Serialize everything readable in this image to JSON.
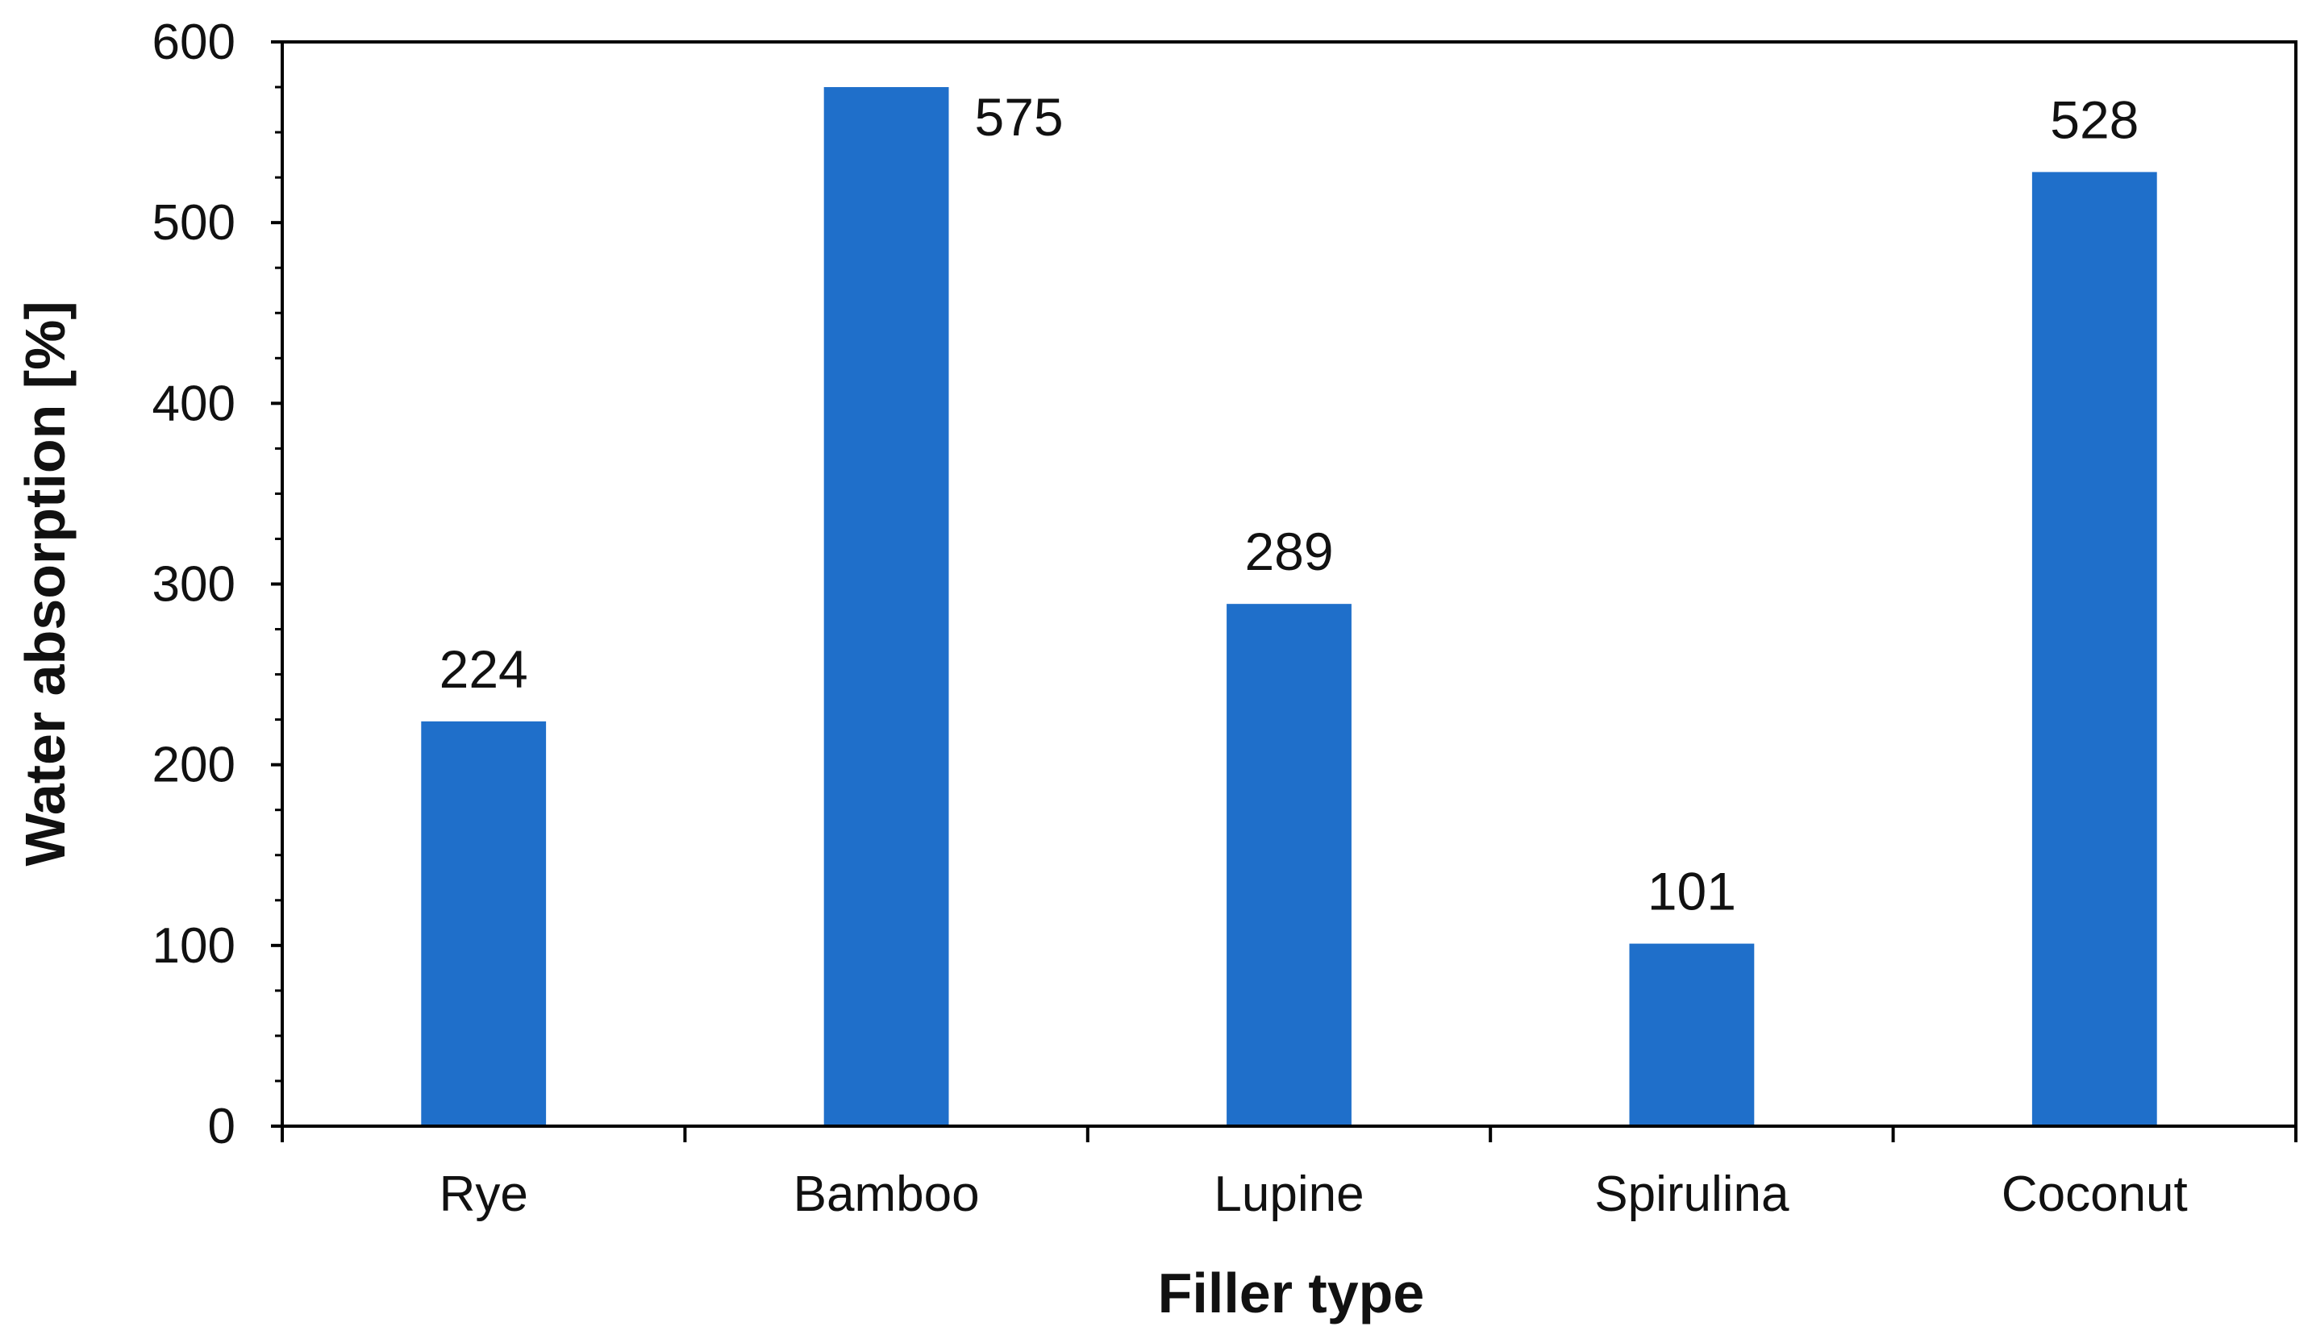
{
  "chart_data": {
    "type": "bar",
    "title": "",
    "xlabel": "Filler type",
    "ylabel": "Water absorption [%]",
    "categories": [
      "Rye",
      "Bamboo",
      "Lupine",
      "Spirulina",
      "Coconut"
    ],
    "values": [
      224,
      575,
      289,
      101,
      528
    ],
    "data_labels": [
      "224",
      "575",
      "289",
      "101",
      "528"
    ],
    "ylim": [
      0,
      600
    ],
    "y_ticks": [
      0,
      100,
      200,
      300,
      400,
      500,
      600
    ],
    "y_minor_step": 25,
    "grid": false,
    "legend": "none",
    "bar_color": "#1f6fca",
    "axis_color": "#000000"
  }
}
